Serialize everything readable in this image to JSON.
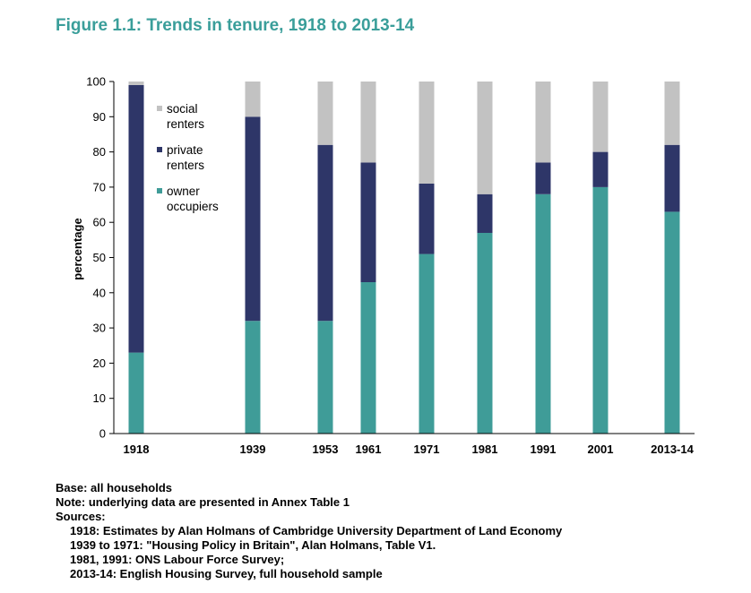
{
  "figure": {
    "title": "Figure 1.1: Trends in tenure, 1918 to 2013-14"
  },
  "chart_data": {
    "type": "bar",
    "stacked": true,
    "title": "Figure 1.1: Trends in tenure, 1918 to 2013-14",
    "ylabel": "percentage",
    "xlabel": "",
    "ylim": [
      0,
      100
    ],
    "yticks": [
      0,
      10,
      20,
      30,
      40,
      50,
      60,
      70,
      80,
      90,
      100
    ],
    "categories": [
      "1918",
      "1939",
      "1953",
      "1961",
      "1971",
      "1981",
      "1991",
      "2001",
      "2013-14"
    ],
    "grid": false,
    "legend_placement": "top-left",
    "series": [
      {
        "name": "owner occupiers",
        "legend_lines": [
          "owner",
          "occupiers"
        ],
        "color": "#3f9c98",
        "values": [
          23,
          32,
          32,
          43,
          51,
          57,
          68,
          70,
          63
        ]
      },
      {
        "name": "private renters",
        "legend_lines": [
          "private",
          "renters"
        ],
        "color": "#2e3668",
        "values": [
          76,
          58,
          50,
          34,
          20,
          11,
          9,
          10,
          19
        ]
      },
      {
        "name": "social renters",
        "legend_lines": [
          "social",
          "renters"
        ],
        "color": "#c2c2c2",
        "values": [
          1,
          10,
          18,
          23,
          29,
          32,
          23,
          20,
          18
        ]
      }
    ]
  },
  "notes": {
    "base": "Base: all households",
    "note": "Note: underlying data are presented in Annex Table 1",
    "sources_label": "Sources:",
    "sources": [
      "1918: Estimates by Alan Holmans of Cambridge University Department of Land Economy",
      "1939 to 1971: \"Housing Policy in Britain\", Alan Holmans, Table V1.",
      "1981, 1991: ONS Labour Force Survey;",
      "2013-14: English Housing Survey, full household sample"
    ]
  }
}
